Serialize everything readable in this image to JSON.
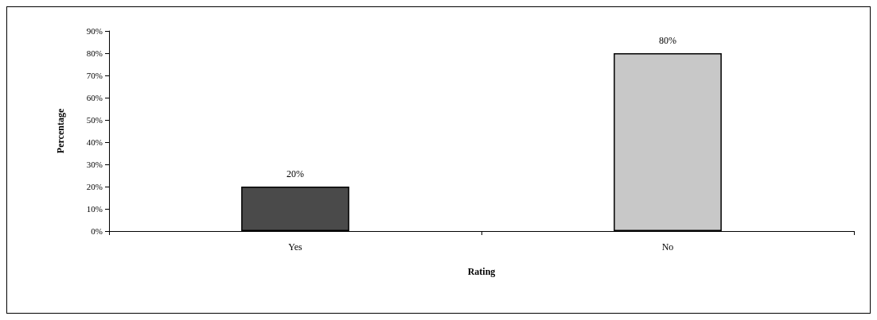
{
  "chart_data": {
    "type": "bar",
    "xlabel": "Rating",
    "ylabel": "Percentage",
    "categories": [
      "Yes",
      "No"
    ],
    "values": [
      20,
      80
    ],
    "value_labels": [
      "20%",
      "80%"
    ],
    "colors": [
      "#4a4a4a",
      "#c8c8c8"
    ],
    "ylim": [
      0,
      90
    ],
    "yticks": [
      {
        "value": 0,
        "label": "0%"
      },
      {
        "value": 10,
        "label": "10%"
      },
      {
        "value": 20,
        "label": "20%"
      },
      {
        "value": 30,
        "label": "30%"
      },
      {
        "value": 40,
        "label": "40%"
      },
      {
        "value": 50,
        "label": "50%"
      },
      {
        "value": 60,
        "label": "60%"
      },
      {
        "value": 70,
        "label": "70%"
      },
      {
        "value": 80,
        "label": "80%"
      },
      {
        "value": 90,
        "label": "90%"
      }
    ],
    "grid": false
  }
}
